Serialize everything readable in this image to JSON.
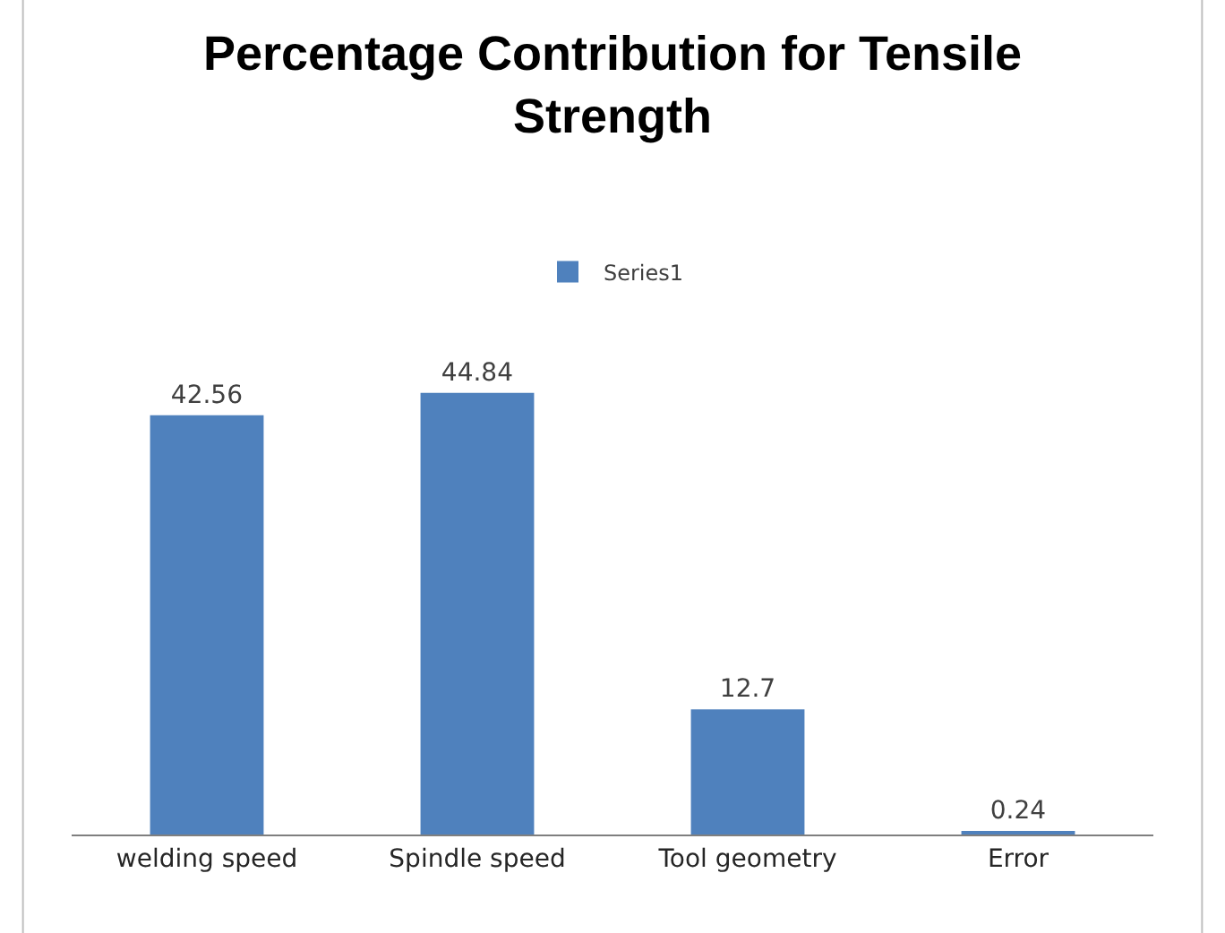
{
  "chart_data": {
    "type": "bar",
    "title": "Percentage Contribution for Tensile Strength",
    "categories": [
      "welding speed",
      "Spindle speed",
      "Tool geometry",
      "Error"
    ],
    "series": [
      {
        "name": "Series1",
        "color": "#4f81bd",
        "values": [
          42.56,
          44.84,
          12.7,
          0.24
        ]
      }
    ],
    "data_labels": true,
    "legend": "top"
  }
}
